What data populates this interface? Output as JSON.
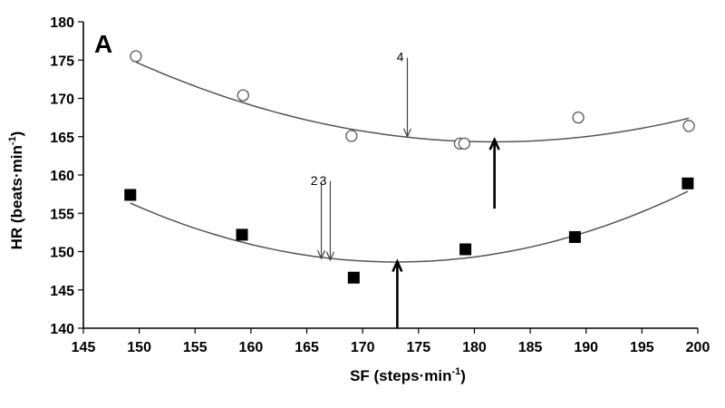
{
  "chart_data": {
    "type": "scatter",
    "panel_label": "A",
    "xlabel": "SF (steps·min",
    "xlabel_sup": "-1",
    "xlabel_end": ")",
    "ylabel": "HR (beats·min",
    "ylabel_sup": "-1",
    "ylabel_end": ")",
    "xlim": [
      145,
      200
    ],
    "ylim": [
      140,
      180
    ],
    "xticks": [
      145,
      150,
      155,
      160,
      165,
      170,
      175,
      180,
      185,
      190,
      195,
      200
    ],
    "yticks": [
      140,
      145,
      150,
      155,
      160,
      165,
      170,
      175,
      180
    ],
    "grid": false,
    "series": [
      {
        "marker": "open-circle",
        "points": [
          [
            149.7,
            175.5
          ],
          [
            159.3,
            170.4
          ],
          [
            169.0,
            165.1
          ],
          [
            178.7,
            164.1
          ],
          [
            179.1,
            164.1
          ],
          [
            189.3,
            167.5
          ],
          [
            199.2,
            166.4
          ]
        ],
        "fit_curve": {
          "a": 0.01014,
          "b": -3.686,
          "c": 499.3,
          "x_range": [
            149.7,
            199.2
          ]
        }
      },
      {
        "marker": "filled-square",
        "points": [
          [
            149.2,
            157.4
          ],
          [
            159.2,
            152.2
          ],
          [
            169.2,
            146.6
          ],
          [
            179.2,
            150.3
          ],
          [
            189.0,
            151.9
          ],
          [
            199.1,
            158.9
          ]
        ],
        "fit_curve": {
          "a": 0.01355,
          "b": -4.689,
          "c": 554.3,
          "x_range": [
            149.2,
            199.1
          ]
        }
      }
    ],
    "annotations": [
      {
        "text": "4",
        "style": "thin-down-arrow",
        "x": 174.0,
        "y_from": 175.3,
        "y_to": 165.0
      },
      {
        "text": "2",
        "style": "thin-down-arrow",
        "x": 166.3,
        "y_from": 159.2,
        "y_to": 149.1
      },
      {
        "text": "3",
        "style": "thin-down-arrow",
        "x": 167.1,
        "y_from": 159.2,
        "y_to": 148.9
      },
      {
        "text": "",
        "style": "thick-up-arrow",
        "x": 181.8,
        "y_from": 155.6,
        "y_to": 164.6
      },
      {
        "text": "",
        "style": "thick-up-arrow",
        "x": 173.1,
        "y_from": 140.0,
        "y_to": 148.7
      }
    ]
  }
}
